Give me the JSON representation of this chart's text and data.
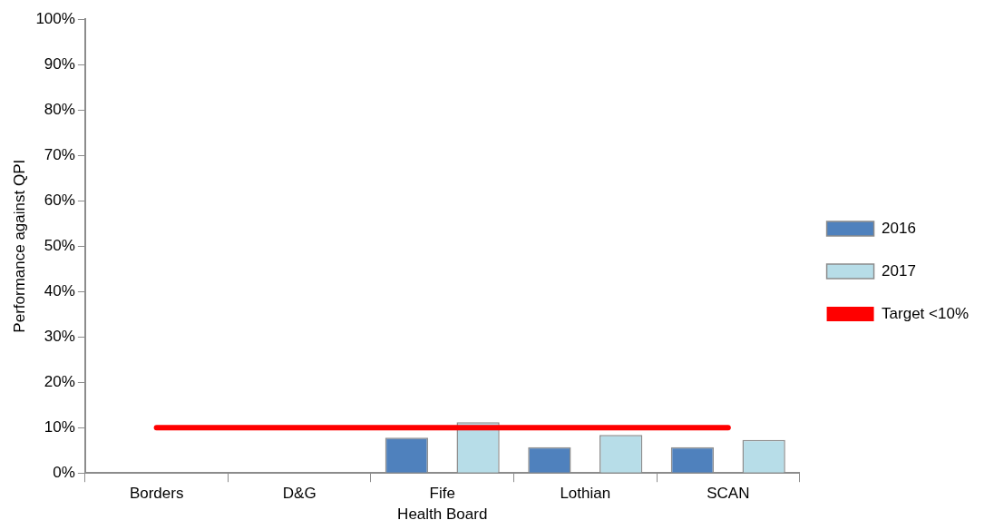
{
  "chart_data": {
    "type": "bar",
    "xlabel": "Health Board",
    "ylabel": "Performance against QPI",
    "categories": [
      "Borders",
      "D&G",
      "Fife",
      "Lothian",
      "SCAN"
    ],
    "series": [
      {
        "name": "2016",
        "color": "#4f81bd",
        "values": [
          null,
          null,
          7.8,
          5.7,
          5.7
        ]
      },
      {
        "name": "2017",
        "color": "#b7dde8",
        "values": [
          null,
          null,
          11.2,
          8.4,
          7.3
        ]
      },
      {
        "name": "Target <10%",
        "type": "line",
        "color": "#ff0000",
        "values": [
          10,
          10,
          10,
          10,
          10
        ]
      }
    ],
    "ylim": [
      0,
      100
    ],
    "yticks": [
      {
        "value": 0,
        "label": "0%"
      },
      {
        "value": 10,
        "label": "10%"
      },
      {
        "value": 20,
        "label": "20%"
      },
      {
        "value": 30,
        "label": "30%"
      },
      {
        "value": 40,
        "label": "40%"
      },
      {
        "value": 50,
        "label": "50%"
      },
      {
        "value": 60,
        "label": "60%"
      },
      {
        "value": 70,
        "label": "70%"
      },
      {
        "value": 80,
        "label": "80%"
      },
      {
        "value": 90,
        "label": "90%"
      },
      {
        "value": 100,
        "label": "100%"
      }
    ],
    "grid": false,
    "legend": "right",
    "marker": "none"
  }
}
